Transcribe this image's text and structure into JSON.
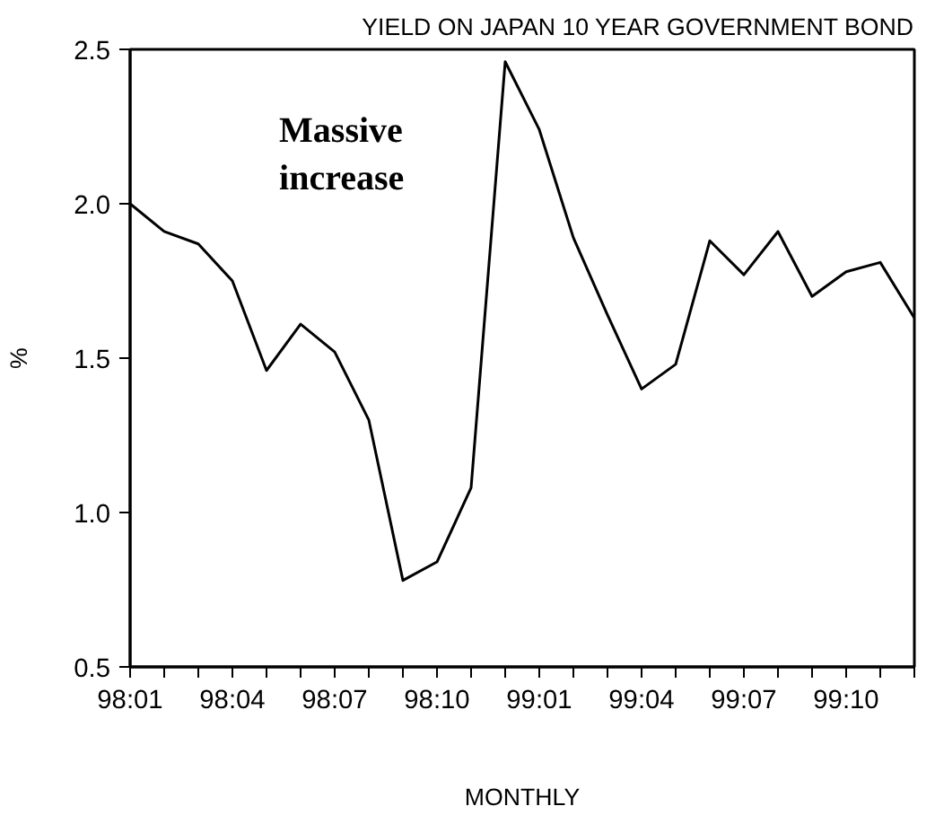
{
  "chart_data": {
    "type": "line",
    "title": "YIELD ON JAPAN 10 YEAR GOVERNMENT BOND",
    "xlabel": "MONTHLY",
    "ylabel": "%",
    "categories": [
      "98:01",
      null,
      null,
      "98:04",
      null,
      null,
      "98:07",
      null,
      null,
      "98:10",
      null,
      null,
      "99:01",
      null,
      null,
      "99:04",
      null,
      null,
      "99:07",
      null,
      null,
      "99:10",
      null,
      null
    ],
    "series": [
      {
        "color": "#000000",
        "values": [
          2.0,
          1.91,
          1.87,
          1.75,
          1.46,
          1.61,
          1.52,
          1.3,
          0.78,
          0.84,
          1.08,
          2.46,
          2.24,
          1.89,
          1.64,
          1.4,
          1.48,
          1.88,
          1.77,
          1.91,
          1.7,
          1.78,
          1.81,
          1.63
        ]
      }
    ],
    "ylim": [
      0.5,
      2.5
    ],
    "yticks": [
      {
        "value": 0.5,
        "label": "0.5"
      },
      {
        "value": 1.0,
        "label": "1.0"
      },
      {
        "value": 1.5,
        "label": "1.5"
      },
      {
        "value": 2.0,
        "label": "2.0"
      },
      {
        "value": 2.5,
        "label": "2.5"
      }
    ],
    "annotations": [
      "Massive\nincrease"
    ],
    "grid": false,
    "marker": "none",
    "line_style": "solid"
  }
}
